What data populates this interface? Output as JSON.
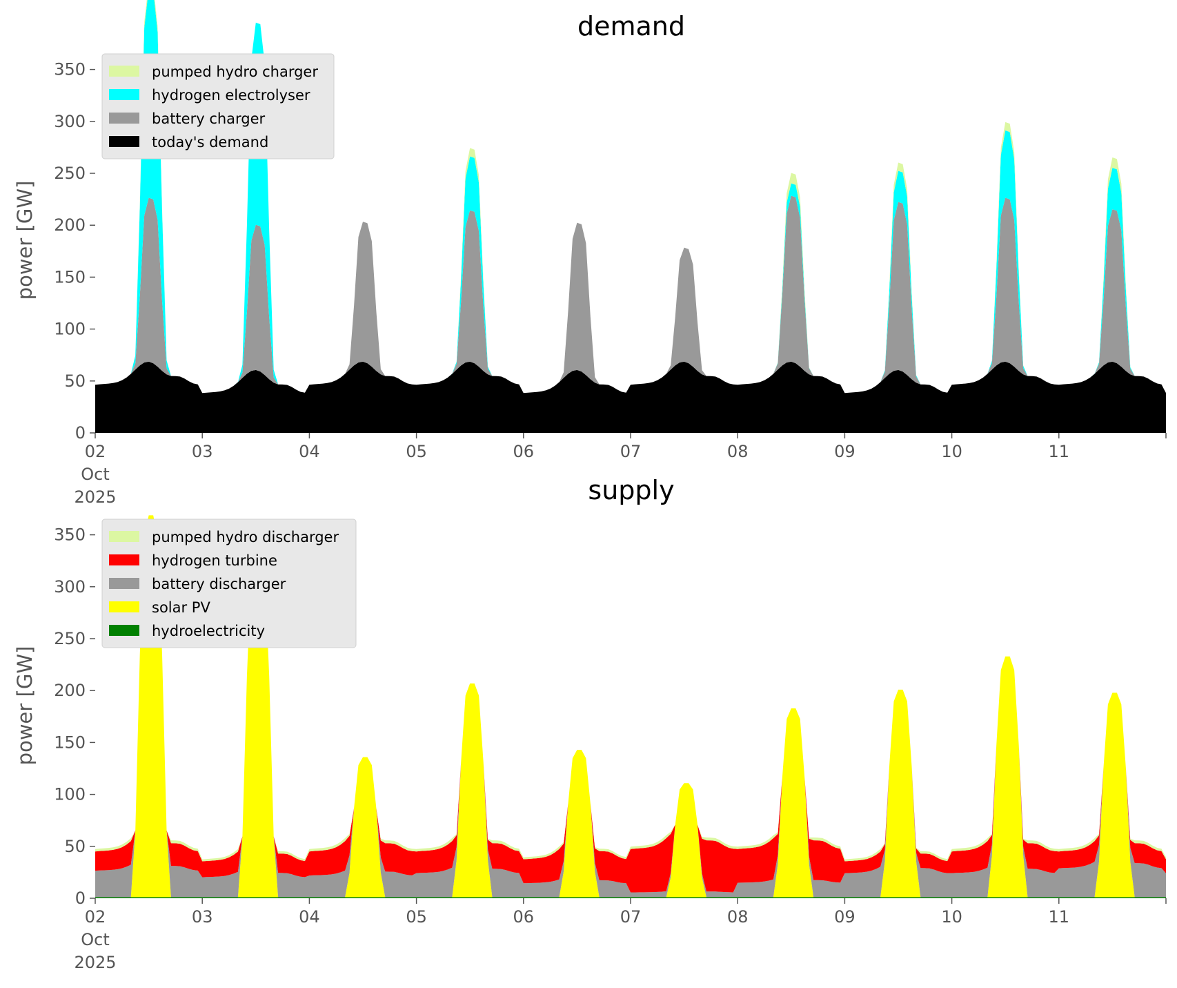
{
  "chart_data": [
    {
      "type": "area",
      "stacked": true,
      "title": "demand",
      "ylabel": "power [GW]",
      "xlabel": "",
      "x_start": "2025-10-02T00:00",
      "x_end": "2025-10-12T00:00",
      "x_step_hours": 1,
      "ylim": [
        0,
        375
      ],
      "yticks": [
        0,
        50,
        100,
        150,
        200,
        250,
        300,
        350
      ],
      "xtick_labels": [
        "02\nOct\n2025",
        "03",
        "04",
        "05",
        "06",
        "07",
        "08",
        "09",
        "10",
        "11"
      ],
      "legend_position": "top-left",
      "grid": false,
      "series": [
        {
          "name": "today's demand",
          "color": "#000000",
          "shape": {
            "kind": "demand"
          }
        },
        {
          "name": "battery charger",
          "color": "#999999",
          "shape": {
            "kind": "peaks",
            "peaks": [
              158,
              140,
              135,
              146,
              142,
              110,
              160,
              162,
              158,
              147
            ]
          }
        },
        {
          "name": "hydrogen electrolyser",
          "color": "#00ffff",
          "shape": {
            "kind": "peaks",
            "peaks": [
              202,
              195,
              0,
              52,
              0,
              0,
              12,
              30,
              65,
              40
            ]
          }
        },
        {
          "name": "pumped hydro charger",
          "color": "#dcf7a2",
          "shape": {
            "kind": "peaks",
            "peaks": [
              6,
              0,
              0,
              8,
              0,
              0,
              10,
              8,
              8,
              10
            ]
          }
        }
      ]
    },
    {
      "type": "area",
      "stacked": true,
      "title": "supply",
      "ylabel": "power [GW]",
      "xlabel": "",
      "x_start": "2025-10-02T00:00",
      "x_end": "2025-10-12T00:00",
      "x_step_hours": 1,
      "ylim": [
        0,
        375
      ],
      "yticks": [
        0,
        50,
        100,
        150,
        200,
        250,
        300,
        350
      ],
      "xtick_labels": [
        "02\nOct\n2025",
        "03",
        "04",
        "05",
        "06",
        "07",
        "08",
        "09",
        "10",
        "11"
      ],
      "legend_position": "top-left",
      "grid": false,
      "series": [
        {
          "name": "hydroelectricity",
          "color": "#008000",
          "shape": {
            "kind": "constant",
            "value": 1
          }
        },
        {
          "name": "solar PV",
          "color": "#ffff00",
          "shape": {
            "kind": "solar",
            "peaks": [
              368,
              335,
              135,
              206,
              142,
              110,
              182,
              200,
              232,
              197
            ]
          }
        },
        {
          "name": "battery discharger",
          "color": "#999999",
          "shape": {
            "kind": "night_share",
            "shares": [
              0.55,
              0.5,
              0.45,
              0.5,
              0.35,
              0.1,
              0.3,
              0.6,
              0.5,
              0.6
            ]
          }
        },
        {
          "name": "hydrogen turbine",
          "color": "#ff0000",
          "shape": {
            "kind": "night_rest",
            "shares": [
              0.4,
              0.4,
              0.5,
              0.45,
              0.6,
              0.9,
              0.7,
              0.3,
              0.45,
              0.35
            ]
          }
        },
        {
          "name": "pumped hydro discharger",
          "color": "#dcf7a2",
          "shape": {
            "kind": "night_top"
          }
        }
      ]
    }
  ]
}
